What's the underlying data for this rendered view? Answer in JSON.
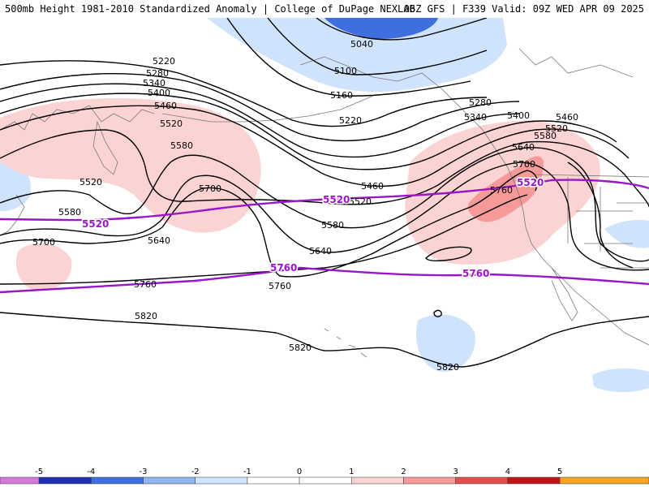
{
  "header": {
    "left": "500mb Height 1981-2010 Standardized Anomaly | College of DuPage NEXLAB",
    "right": "06Z GFS | F339 Valid: 09Z WED APR 09 2025"
  },
  "contour_labels": {
    "c5040": "5040",
    "c5100": "5100",
    "c5160": "5160",
    "c5220a": "5220",
    "c5220b": "5220",
    "c5280a": "5280",
    "c5280b": "5280",
    "c5340a": "5340",
    "c5340b": "5340",
    "c5400a": "5400",
    "c5400b": "5400",
    "c5460a": "5460",
    "c5460b": "5460",
    "c5460c": "5460",
    "c5520a": "5520",
    "c5520b": "5520",
    "c5520c": "5520",
    "c5520d": "5520",
    "c5580a": "5580",
    "c5580b": "5580",
    "c5580c": "5580",
    "c5580d": "5580",
    "c5640a": "5640",
    "c5640b": "5640",
    "c5640c": "5640",
    "c5700a": "5700",
    "c5700b": "5700",
    "c5700c": "5700",
    "c5760a": "5760",
    "c5760b": "5760",
    "c5760c": "5760",
    "c5820a": "5820",
    "c5820b": "5820",
    "c5820c": "5820"
  },
  "reference_lines": {
    "line5520_left": "5520",
    "line5520_mid": "5520",
    "line5520_right": "5520",
    "line5760_mid": "5760",
    "line5760_right": "5760"
  },
  "colors": {
    "neg1": "#cfe3fc",
    "neg2": "#8fb6f2",
    "neg3": "#3f6fdf",
    "neg4": "#1e2fb0",
    "neg5": "#d67ad8",
    "pos1": "#fcd3d3",
    "pos2": "#f59a98",
    "pos3": "#e24e4e",
    "pos4": "#c01515",
    "pos5": "#f5a623",
    "purple": "#9a16c8",
    "coast": "#7a7a7a"
  },
  "legend": {
    "ticks": [
      "-5",
      "-4",
      "-3",
      "-2",
      "-1",
      "0",
      "1",
      "2",
      "3",
      "4",
      "5"
    ]
  }
}
